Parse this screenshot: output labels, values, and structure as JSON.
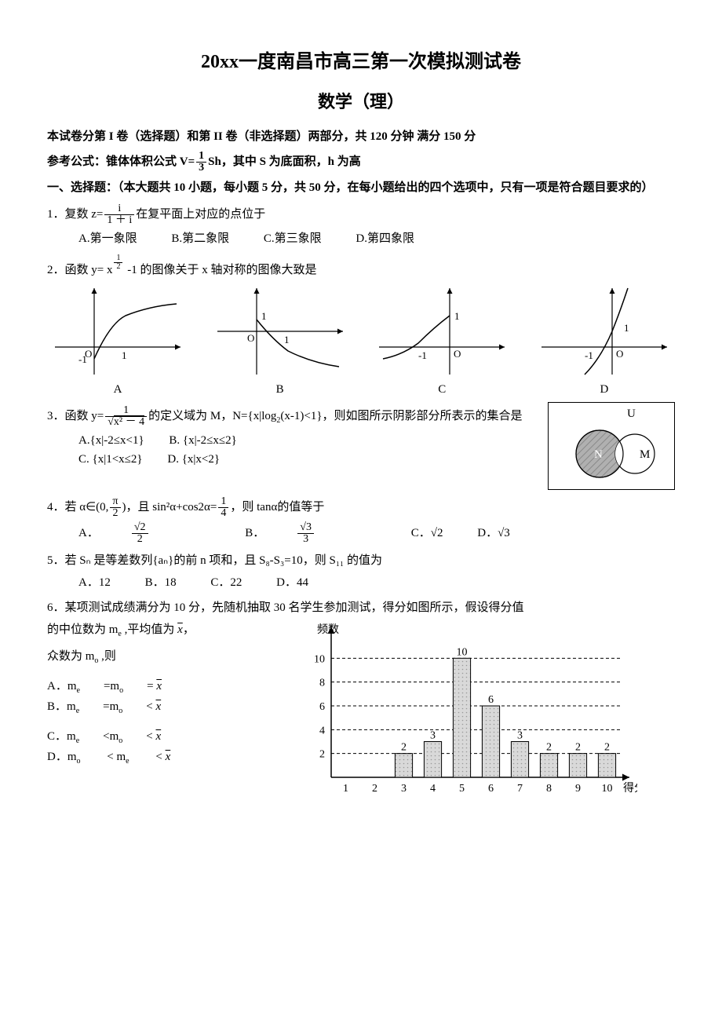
{
  "title": "20xx一度南昌市高三第一次模拟测试卷",
  "subtitle": "数学（理）",
  "intro1": "本试卷分第 I 卷（选择题）和第 II 卷（非选择题）两部分，共 120 分钟  满分 150 分",
  "intro2_prefix": "参考公式：锥体体积公式 V=",
  "intro2_frac_num": "1",
  "intro2_frac_den": "3",
  "intro2_suffix": "Sh，其中 S 为底面积，h 为高",
  "section1": "一、选择题：（本大题共 10 小题，每小题 5 分，共 50 分，在每小题给出的四个选项中，只有一项是符合题目要求的）",
  "q1": {
    "prefix": "1．复数 z=",
    "num": "i",
    "den": "1 ＋ i",
    "suffix": "在复平面上对应的点位于",
    "A": "A.第一象限",
    "B": "B.第二象限",
    "C": "C.第三象限",
    "D": "D.第四象限"
  },
  "q2": {
    "prefix": "2．函数 y= x",
    "exp_num": "1",
    "exp_den": "2",
    "suffix": " -1 的图像关于 x 轴对称的图像大致是",
    "labels": [
      "A",
      "B",
      "C",
      "D"
    ],
    "graphs": {
      "axis_color": "#000",
      "curve_color": "#000",
      "stroke_width": 1.2,
      "arrow": true,
      "one_label": "1",
      "neg_one_label": "-1",
      "O_label": "O"
    }
  },
  "q3": {
    "prefix": "3．函数 y=",
    "num": "1",
    "den_sqrt": "x² － 4",
    "mid": "的定义域为 M，N={x|log",
    "logbase": "2",
    "mid2": "(x-1)<1}，则如图所示阴影部分所表示的集合是",
    "A": "A.{x|-2≤x<1}",
    "B": "B. {x|-2≤x≤2}",
    "C": "C. {x|1<x≤2}",
    "D": "D. {x|x<2}",
    "venn": {
      "U": "U",
      "N": "N",
      "M": "M",
      "fill": "#b0b0b0",
      "hatch": "#888"
    }
  },
  "q4": {
    "prefix": "4．若 α∈(0,",
    "frac1_num": "π",
    "frac1_den": "2",
    "mid1": ")，且 sin²α+cos2α=",
    "frac2_num": "1",
    "frac2_den": "4",
    "mid2": "，则 tanα的值等于",
    "A_pre": "A．",
    "A_num": "√2",
    "A_den": "2",
    "B_pre": "B．",
    "B_num": "√3",
    "B_den": "3",
    "C": "C．√2",
    "D": "D．√3"
  },
  "q5": {
    "text": "5．若 Sₙ 是等差数列{aₙ}的前 n 项和，且 S₈-S₃=10，则 S₁₁ 的值为",
    "A": "A．12",
    "B": "B．18",
    "C": "C．22",
    "D": "D．44"
  },
  "q6": {
    "line1": "6．某项测试成绩满分为 10 分，先随机抽取 30 名学生参加测试，得分如图所示，假设得分值",
    "line2_pre": "的中位数为 m",
    "line2_sub": "e",
    "line2_mid": " ,平均值为 ",
    "line2_x": "x",
    "line2_suffix": "，",
    "line3_pre": "众数为 m",
    "line3_sub": "o",
    "line3_suffix": " ,则",
    "A": "A．mₑ=m₀= x̄",
    "B": "B．mₑ=m₀< x̄",
    "C": "C．mₑ<m₀< x̄",
    "D": "D．m₀ < mₑ < x̄",
    "chart": {
      "type": "bar",
      "categories": [
        "1",
        "2",
        "3",
        "4",
        "5",
        "6",
        "7",
        "8",
        "9",
        "10"
      ],
      "values": [
        0,
        0,
        2,
        3,
        10,
        6,
        3,
        2,
        2,
        2
      ],
      "value_labels": [
        "",
        "",
        "2",
        "3",
        "10",
        "6",
        "3",
        "2",
        "2",
        "2"
      ],
      "ylabel": "频数",
      "xlabel": "得分",
      "ylim": [
        0,
        12
      ],
      "yticks": [
        2,
        4,
        6,
        8,
        10
      ],
      "bar_fill": "#d9d9d9",
      "bar_hatch": "#999",
      "bar_stroke": "#000",
      "grid_color": "#000",
      "grid_dash": "4,3",
      "axis_color": "#000",
      "bar_width": 0.6,
      "label_fontsize": 14,
      "background": "#ffffff"
    }
  }
}
